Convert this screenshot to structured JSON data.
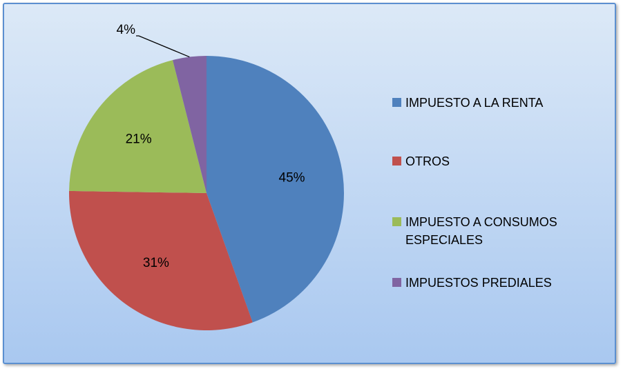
{
  "chart_data": {
    "type": "pie",
    "categories": [
      "IMPUESTO A LA RENTA",
      "OTROS",
      "IMPUESTO A CONSUMOS ESPECIALES",
      "IMPUESTOS PREDIALES"
    ],
    "values": [
      45,
      31,
      21,
      4
    ],
    "value_labels": [
      "45%",
      "31%",
      "21%",
      "4%"
    ],
    "colors": [
      "#4f81bd",
      "#c0504d",
      "#9bbb59",
      "#8064a2"
    ],
    "legend": "right"
  }
}
